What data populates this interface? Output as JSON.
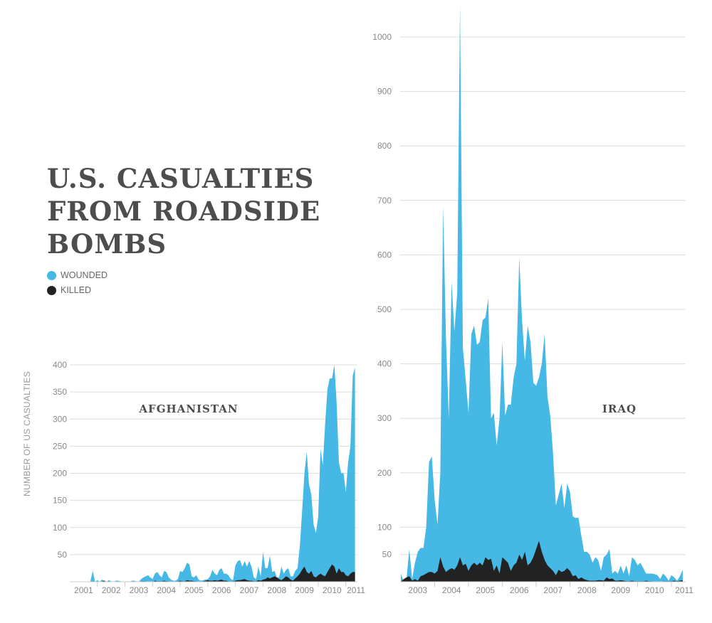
{
  "title": "U.S. CASUALTIES FROM ROADSIDE BOMBS",
  "legend": [
    {
      "label": "WOUNDED",
      "color": "#45b8e6"
    },
    {
      "label": "KILLED",
      "color": "#222222"
    }
  ],
  "chart_data": [
    {
      "type": "area",
      "title": "AFGHANISTAN",
      "ylabel": "NUMBER OF US CASUALTIES",
      "ylim": [
        0,
        400
      ],
      "yticks": [
        50,
        100,
        150,
        200,
        250,
        300,
        350,
        400
      ],
      "xticks": [
        "2001",
        "2002",
        "2003",
        "2004",
        "2005",
        "2006",
        "2007",
        "2008",
        "2009",
        "2010",
        "2011"
      ],
      "xlim": [
        2001.0,
        2011.42
      ],
      "grid": true,
      "start": "2001-10",
      "frequency": "monthly",
      "series": [
        {
          "name": "WOUNDED",
          "color": "#45b8e6",
          "values": [
            2,
            20,
            0,
            3,
            0,
            4,
            2,
            0,
            3,
            1,
            0,
            2,
            2,
            1,
            0,
            0,
            1,
            0,
            2,
            2,
            0,
            0,
            5,
            8,
            10,
            12,
            8,
            5,
            15,
            18,
            12,
            8,
            20,
            18,
            8,
            4,
            2,
            2,
            5,
            20,
            18,
            25,
            35,
            32,
            10,
            8,
            12,
            4,
            2,
            3,
            4,
            5,
            10,
            22,
            15,
            12,
            22,
            25,
            15,
            15,
            12,
            5,
            3,
            30,
            38,
            40,
            28,
            38,
            28,
            38,
            28,
            8,
            5,
            28,
            10,
            55,
            25,
            25,
            48,
            18,
            20,
            8,
            8,
            28,
            15,
            22,
            25,
            10,
            10,
            20,
            25,
            65,
            130,
            200,
            240,
            180,
            160,
            105,
            90,
            120,
            245,
            215,
            290,
            355,
            375,
            375,
            400,
            330,
            220,
            200,
            200,
            165,
            220,
            250,
            380,
            395
          ]
        },
        {
          "name": "KILLED",
          "color": "#222222",
          "values": [
            0,
            1,
            0,
            0,
            0,
            1,
            2,
            0,
            1,
            0,
            0,
            0,
            0,
            0,
            0,
            0,
            0,
            0,
            0,
            0,
            0,
            0,
            1,
            1,
            1,
            0,
            0,
            0,
            2,
            1,
            1,
            1,
            2,
            1,
            1,
            0,
            0,
            0,
            1,
            2,
            1,
            1,
            3,
            2,
            2,
            1,
            1,
            0,
            0,
            1,
            2,
            3,
            2,
            2,
            3,
            2,
            3,
            4,
            2,
            2,
            1,
            0,
            1,
            2,
            3,
            3,
            4,
            5,
            3,
            2,
            2,
            1,
            1,
            3,
            2,
            4,
            5,
            8,
            6,
            8,
            10,
            8,
            5,
            3,
            6,
            10,
            8,
            4,
            2,
            6,
            10,
            15,
            22,
            28,
            18,
            15,
            20,
            10,
            8,
            12,
            15,
            12,
            10,
            18,
            25,
            32,
            28,
            15,
            25,
            18,
            18,
            12,
            10,
            15,
            18,
            18
          ]
        }
      ]
    },
    {
      "type": "area",
      "title": "IRAQ",
      "ylim": [
        0,
        1000
      ],
      "yticks": [
        50,
        100,
        200,
        300,
        400,
        500,
        600,
        700,
        800,
        900,
        1000
      ],
      "xticks": [
        "2003",
        "2004",
        "2005",
        "2006",
        "2007",
        "2008",
        "2009",
        "2010",
        "2011"
      ],
      "xlim": [
        2003.0,
        2011.42
      ],
      "grid": true,
      "start": "2003-01",
      "frequency": "monthly",
      "series": [
        {
          "name": "WOUNDED",
          "color": "#45b8e6",
          "values": [
            15,
            0,
            5,
            60,
            5,
            35,
            55,
            62,
            62,
            100,
            220,
            230,
            150,
            105,
            200,
            690,
            450,
            300,
            550,
            460,
            530,
            1060,
            430,
            370,
            310,
            455,
            470,
            435,
            440,
            480,
            485,
            520,
            300,
            310,
            250,
            300,
            440,
            305,
            325,
            325,
            375,
            400,
            595,
            480,
            405,
            470,
            440,
            365,
            360,
            375,
            400,
            455,
            340,
            305,
            235,
            140,
            160,
            180,
            135,
            180,
            165,
            120,
            117,
            118,
            85,
            55,
            55,
            50,
            35,
            45,
            40,
            20,
            45,
            50,
            60,
            15,
            20,
            15,
            30,
            15,
            30,
            10,
            45,
            40,
            30,
            35,
            25,
            15,
            15,
            15,
            14,
            12,
            5,
            15,
            10,
            2,
            12,
            8,
            2,
            10,
            22
          ]
        },
        {
          "name": "KILLED",
          "color": "#222222",
          "values": [
            0,
            5,
            8,
            10,
            2,
            5,
            2,
            10,
            12,
            15,
            18,
            18,
            15,
            20,
            45,
            28,
            18,
            22,
            25,
            22,
            30,
            45,
            30,
            33,
            20,
            30,
            35,
            30,
            35,
            30,
            45,
            40,
            42,
            20,
            30,
            15,
            45,
            40,
            35,
            20,
            30,
            35,
            50,
            40,
            55,
            30,
            35,
            45,
            60,
            75,
            55,
            40,
            30,
            25,
            20,
            12,
            22,
            18,
            20,
            25,
            20,
            10,
            12,
            5,
            8,
            5,
            3,
            2,
            2,
            2,
            3,
            3,
            2,
            8,
            5,
            6,
            2,
            2,
            3,
            2,
            1,
            1,
            2,
            1,
            1,
            1,
            1,
            2,
            1,
            1,
            0,
            0,
            0,
            1,
            1,
            1,
            1,
            2,
            1,
            2,
            3
          ]
        }
      ]
    }
  ]
}
